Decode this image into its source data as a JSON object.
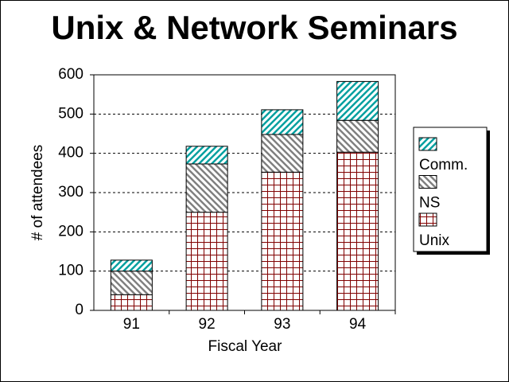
{
  "chart_data": {
    "type": "stacked-bar",
    "title": "Unix & Network Seminars",
    "x_label": "Fiscal Year",
    "y_label": "# of attendees",
    "categories": [
      "91",
      "92",
      "93",
      "94"
    ],
    "series": [
      {
        "name": "Unix",
        "color": "#800000",
        "pattern": "grid",
        "values": [
          40,
          250,
          352,
          403
        ]
      },
      {
        "name": "NS",
        "color": "#808080",
        "pattern": "back-diagonal",
        "values": [
          60,
          123,
          96,
          81
        ]
      },
      {
        "name": "Comm.",
        "color": "#00a0a0",
        "pattern": "diagonal",
        "values": [
          28,
          45,
          63,
          99
        ]
      }
    ],
    "ylim": [
      0,
      600
    ],
    "yticks": [
      0,
      100,
      200,
      300,
      400,
      500,
      600
    ],
    "grid": true,
    "legend": "right"
  }
}
